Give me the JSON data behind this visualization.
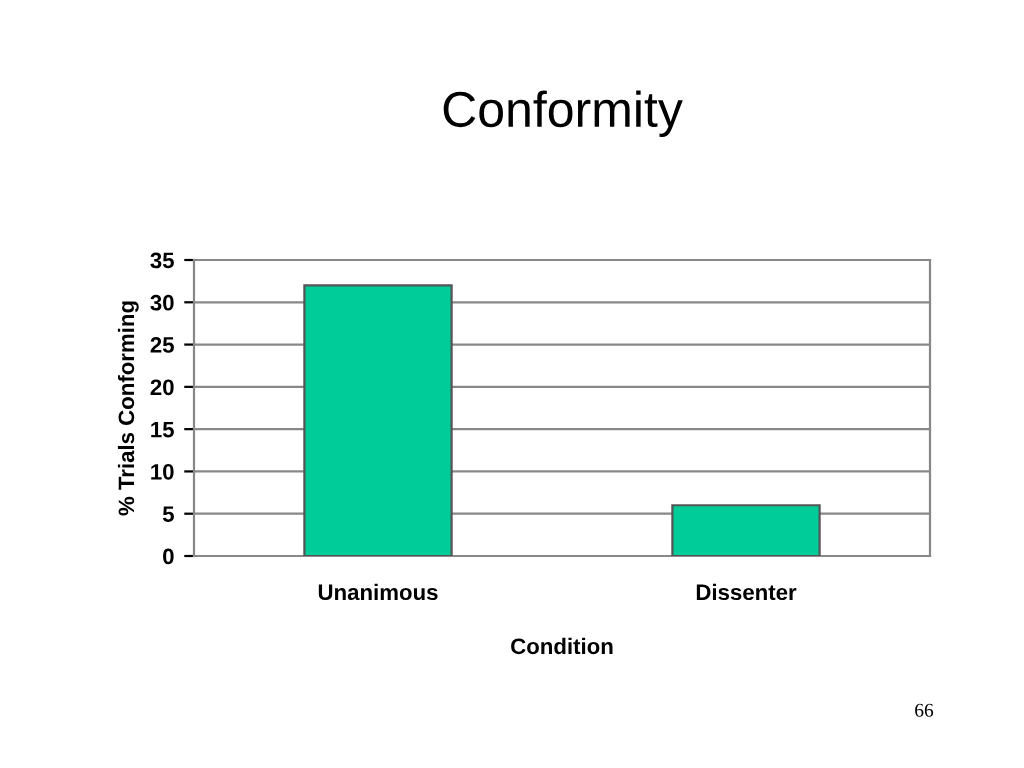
{
  "chart_data": {
    "type": "bar",
    "title": "Conformity",
    "xlabel": "Condition",
    "ylabel": "% Trials Conforming",
    "categories": [
      "Unanimous",
      "Dissenter"
    ],
    "values": [
      32,
      6
    ],
    "color": "#00cc99",
    "ylim": [
      0,
      35
    ],
    "yticks": [
      0,
      5,
      10,
      15,
      20,
      25,
      30,
      35
    ],
    "grid": "y",
    "annotations": [
      "66"
    ]
  }
}
